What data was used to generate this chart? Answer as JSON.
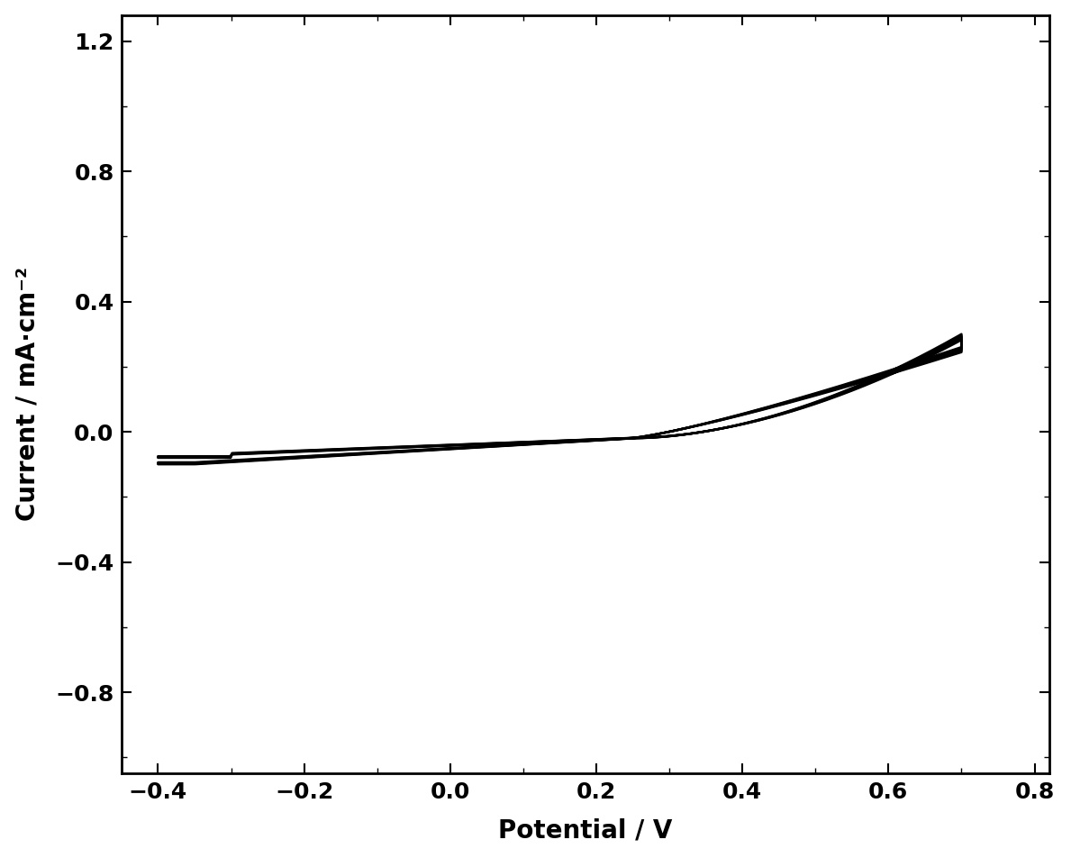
{
  "xlabel": "Potential / V",
  "ylabel": "Current / mA·cm⁻²",
  "xlim": [
    -0.45,
    0.82
  ],
  "ylim": [
    -1.05,
    1.28
  ],
  "xticks": [
    -0.4,
    -0.2,
    0.0,
    0.2,
    0.4,
    0.6,
    0.8
  ],
  "yticks": [
    -0.8,
    -0.4,
    0.0,
    0.4,
    0.8,
    1.2
  ],
  "line_color": "#000000",
  "background_color": "#ffffff",
  "figsize": [
    11.89,
    9.52
  ],
  "dpi": 100,
  "n_cycles": 5
}
